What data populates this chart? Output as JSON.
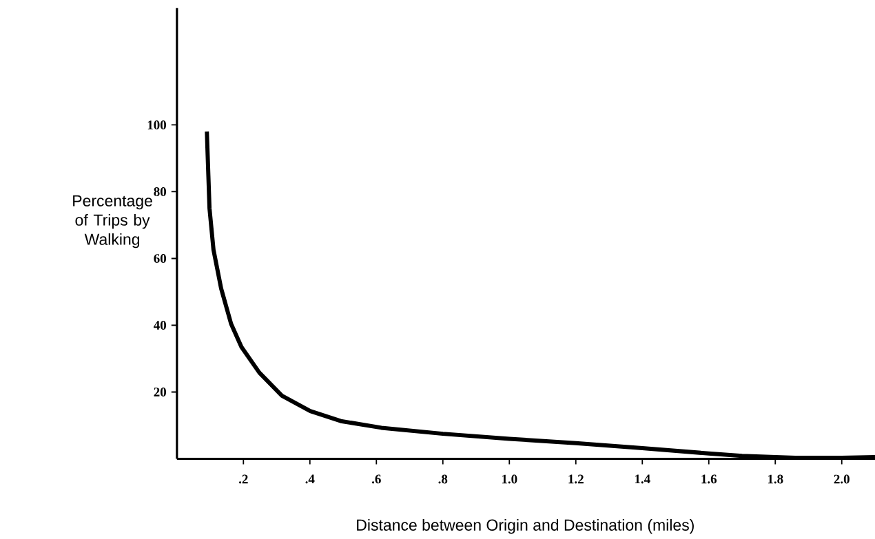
{
  "chart_data": {
    "type": "line",
    "xlabel": "Distance between Origin and Destination (miles)",
    "ylabel": "Percentage of Trips by Walking",
    "xlim": [
      0,
      2.1
    ],
    "ylim": [
      0,
      135
    ],
    "xticks": [
      {
        "value": 0.2,
        "label": ".2"
      },
      {
        "value": 0.4,
        "label": ".4"
      },
      {
        "value": 0.6,
        "label": ".6"
      },
      {
        "value": 0.8,
        "label": ".8"
      },
      {
        "value": 1,
        "label": "1.0"
      },
      1.2,
      1.4,
      1.6,
      1.8,
      {
        "value": 2,
        "label": "2.0"
      }
    ],
    "yticks": [
      20,
      40,
      60,
      80,
      100
    ],
    "line_style": "solid",
    "series": [
      {
        "color": "#000000",
        "x": [
          0.09,
          0.098,
          0.11,
          0.133,
          0.163,
          0.194,
          0.248,
          0.316,
          0.401,
          0.493,
          0.615,
          0.8,
          1.0,
          1.2,
          1.4,
          1.6,
          1.7,
          1.8,
          1.86,
          2.0,
          2.1
        ],
        "values": [
          98,
          75,
          62.6,
          51,
          40.4,
          33.5,
          25.8,
          18.9,
          14.3,
          11.3,
          9.3,
          7.5,
          6,
          4.7,
          3.2,
          1.6,
          0.9,
          0.5,
          0.3,
          0.3,
          0.5
        ]
      }
    ]
  }
}
